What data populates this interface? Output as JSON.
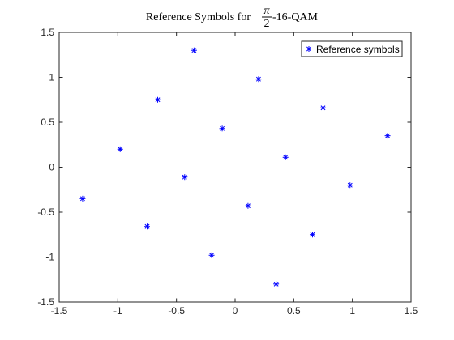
{
  "chart_data": {
    "type": "scatter",
    "title": {
      "prefix": "Reference Symbols for ",
      "frac_num": "π",
      "frac_den": "2",
      "suffix": "-16-QAM"
    },
    "xlabel": "",
    "ylabel": "",
    "xlim": [
      -1.5,
      1.5
    ],
    "ylim": [
      -1.5,
      1.5
    ],
    "xticks": [
      -1.5,
      -1,
      -0.5,
      0,
      0.5,
      1,
      1.5
    ],
    "yticks": [
      -1.5,
      -1,
      -0.5,
      0,
      0.5,
      1,
      1.5
    ],
    "xtick_labels": [
      "-1.5",
      "-1",
      "-0.5",
      "0",
      "0.5",
      "1",
      "1.5"
    ],
    "ytick_labels": [
      "-1.5",
      "-1",
      "-0.5",
      "0",
      "0.5",
      "1",
      "1.5"
    ],
    "grid": false,
    "legend_position": "top-right",
    "marker": "asterisk",
    "series": [
      {
        "name": "Reference symbols",
        "color": "#0000ff",
        "points": [
          [
            -1.3,
            -0.35
          ],
          [
            -0.98,
            0.2
          ],
          [
            -0.75,
            -0.66
          ],
          [
            -0.66,
            0.75
          ],
          [
            -0.43,
            -0.11
          ],
          [
            -0.35,
            1.3
          ],
          [
            -0.2,
            -0.98
          ],
          [
            -0.11,
            0.43
          ],
          [
            0.11,
            -0.43
          ],
          [
            0.2,
            0.98
          ],
          [
            0.35,
            -1.3
          ],
          [
            0.43,
            0.11
          ],
          [
            0.66,
            -0.75
          ],
          [
            0.75,
            0.66
          ],
          [
            0.98,
            -0.2
          ],
          [
            1.3,
            0.35
          ]
        ]
      }
    ]
  }
}
